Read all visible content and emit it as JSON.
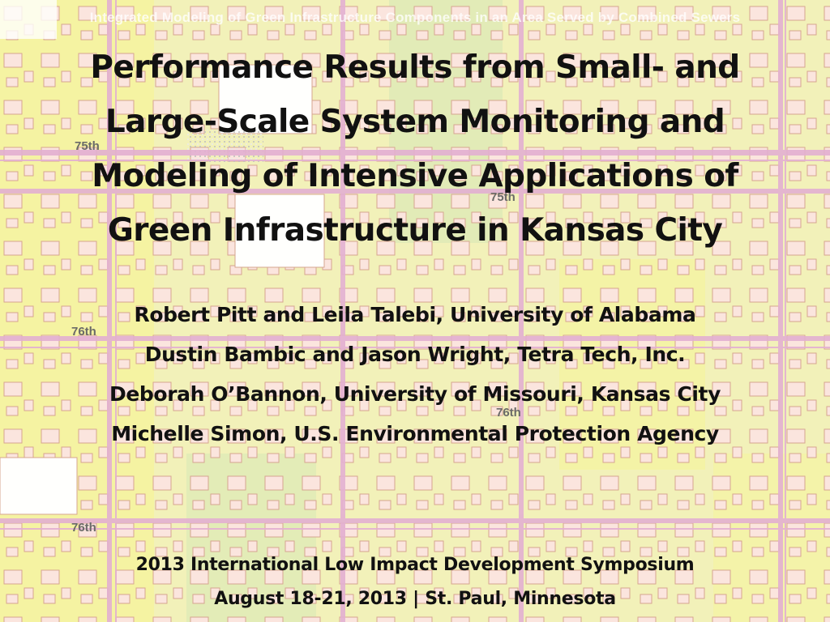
{
  "slide": {
    "header_banner": "Integrated Modeling of Green Infrastructure Components in an Area Served by Combined Sewers",
    "title_lines": [
      "Performance Results from Small- and",
      "Large-Scale System Monitoring and",
      "Modeling of Intensive Applications of",
      "Green Infrastructure in Kansas City"
    ],
    "authors": [
      "Robert Pitt and Leila Talebi, University of Alabama",
      "Dustin Bambic and Jason Wright, Tetra Tech, Inc.",
      "Deborah O’Bannon, University of Missouri, Kansas City",
      "Michelle Simon, U.S. Environmental Protection Agency"
    ],
    "conference": {
      "name": "2013 International Low Impact Development Symposium",
      "date_location": "August 18-21, 2013 | St. Paul, Minnesota"
    }
  },
  "map": {
    "street_labels": [
      "75th",
      "75th",
      "76th",
      "76th",
      "76th"
    ],
    "colors": {
      "yellow": "#f1f0b4",
      "bright_yellow": "#f4f29a",
      "green": "#cfe3b0",
      "road_pink": "#e0a7cf",
      "parcel_pink": "#fbe3dd",
      "parcel_outline": "#d29b86"
    }
  }
}
